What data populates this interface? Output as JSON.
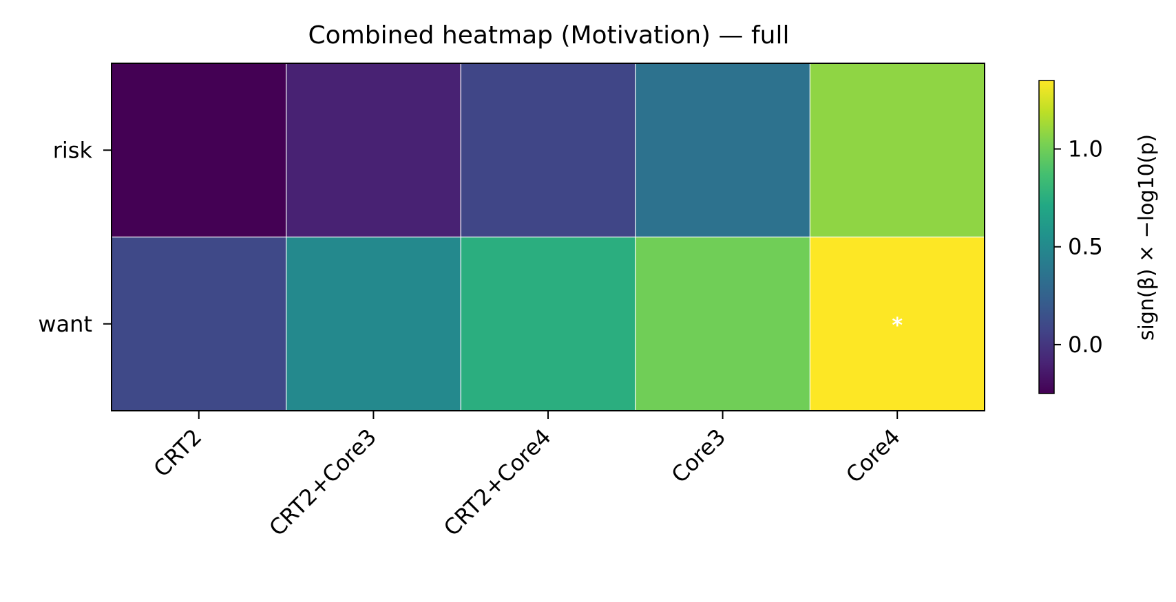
{
  "chart_data": {
    "type": "heatmap",
    "title": "Combined heatmap (Motivation) — full",
    "xlabel": "",
    "ylabel": "",
    "columns": [
      "CRT2",
      "CRT2+Core3",
      "CRT2+Core4",
      "Core3",
      "Core4"
    ],
    "rows": [
      "risk",
      "want"
    ],
    "values": [
      [
        -0.25,
        -0.1,
        0.08,
        0.35,
        1.08
      ],
      [
        0.1,
        0.5,
        0.75,
        1.0,
        1.35
      ]
    ],
    "annotations": [
      [
        "",
        "",
        "",
        "",
        ""
      ],
      [
        "",
        "",
        "",
        "",
        "*"
      ]
    ],
    "colorbar": {
      "label": "sign(β) × −log10(p)",
      "vmin": -0.25,
      "vmax": 1.35,
      "ticks": [
        0.0,
        0.5,
        1.0
      ],
      "tick_labels": [
        "0.0",
        "0.5",
        "1.0"
      ],
      "colormap": "viridis"
    },
    "grid": true,
    "annotation_color": "#ffffff"
  }
}
